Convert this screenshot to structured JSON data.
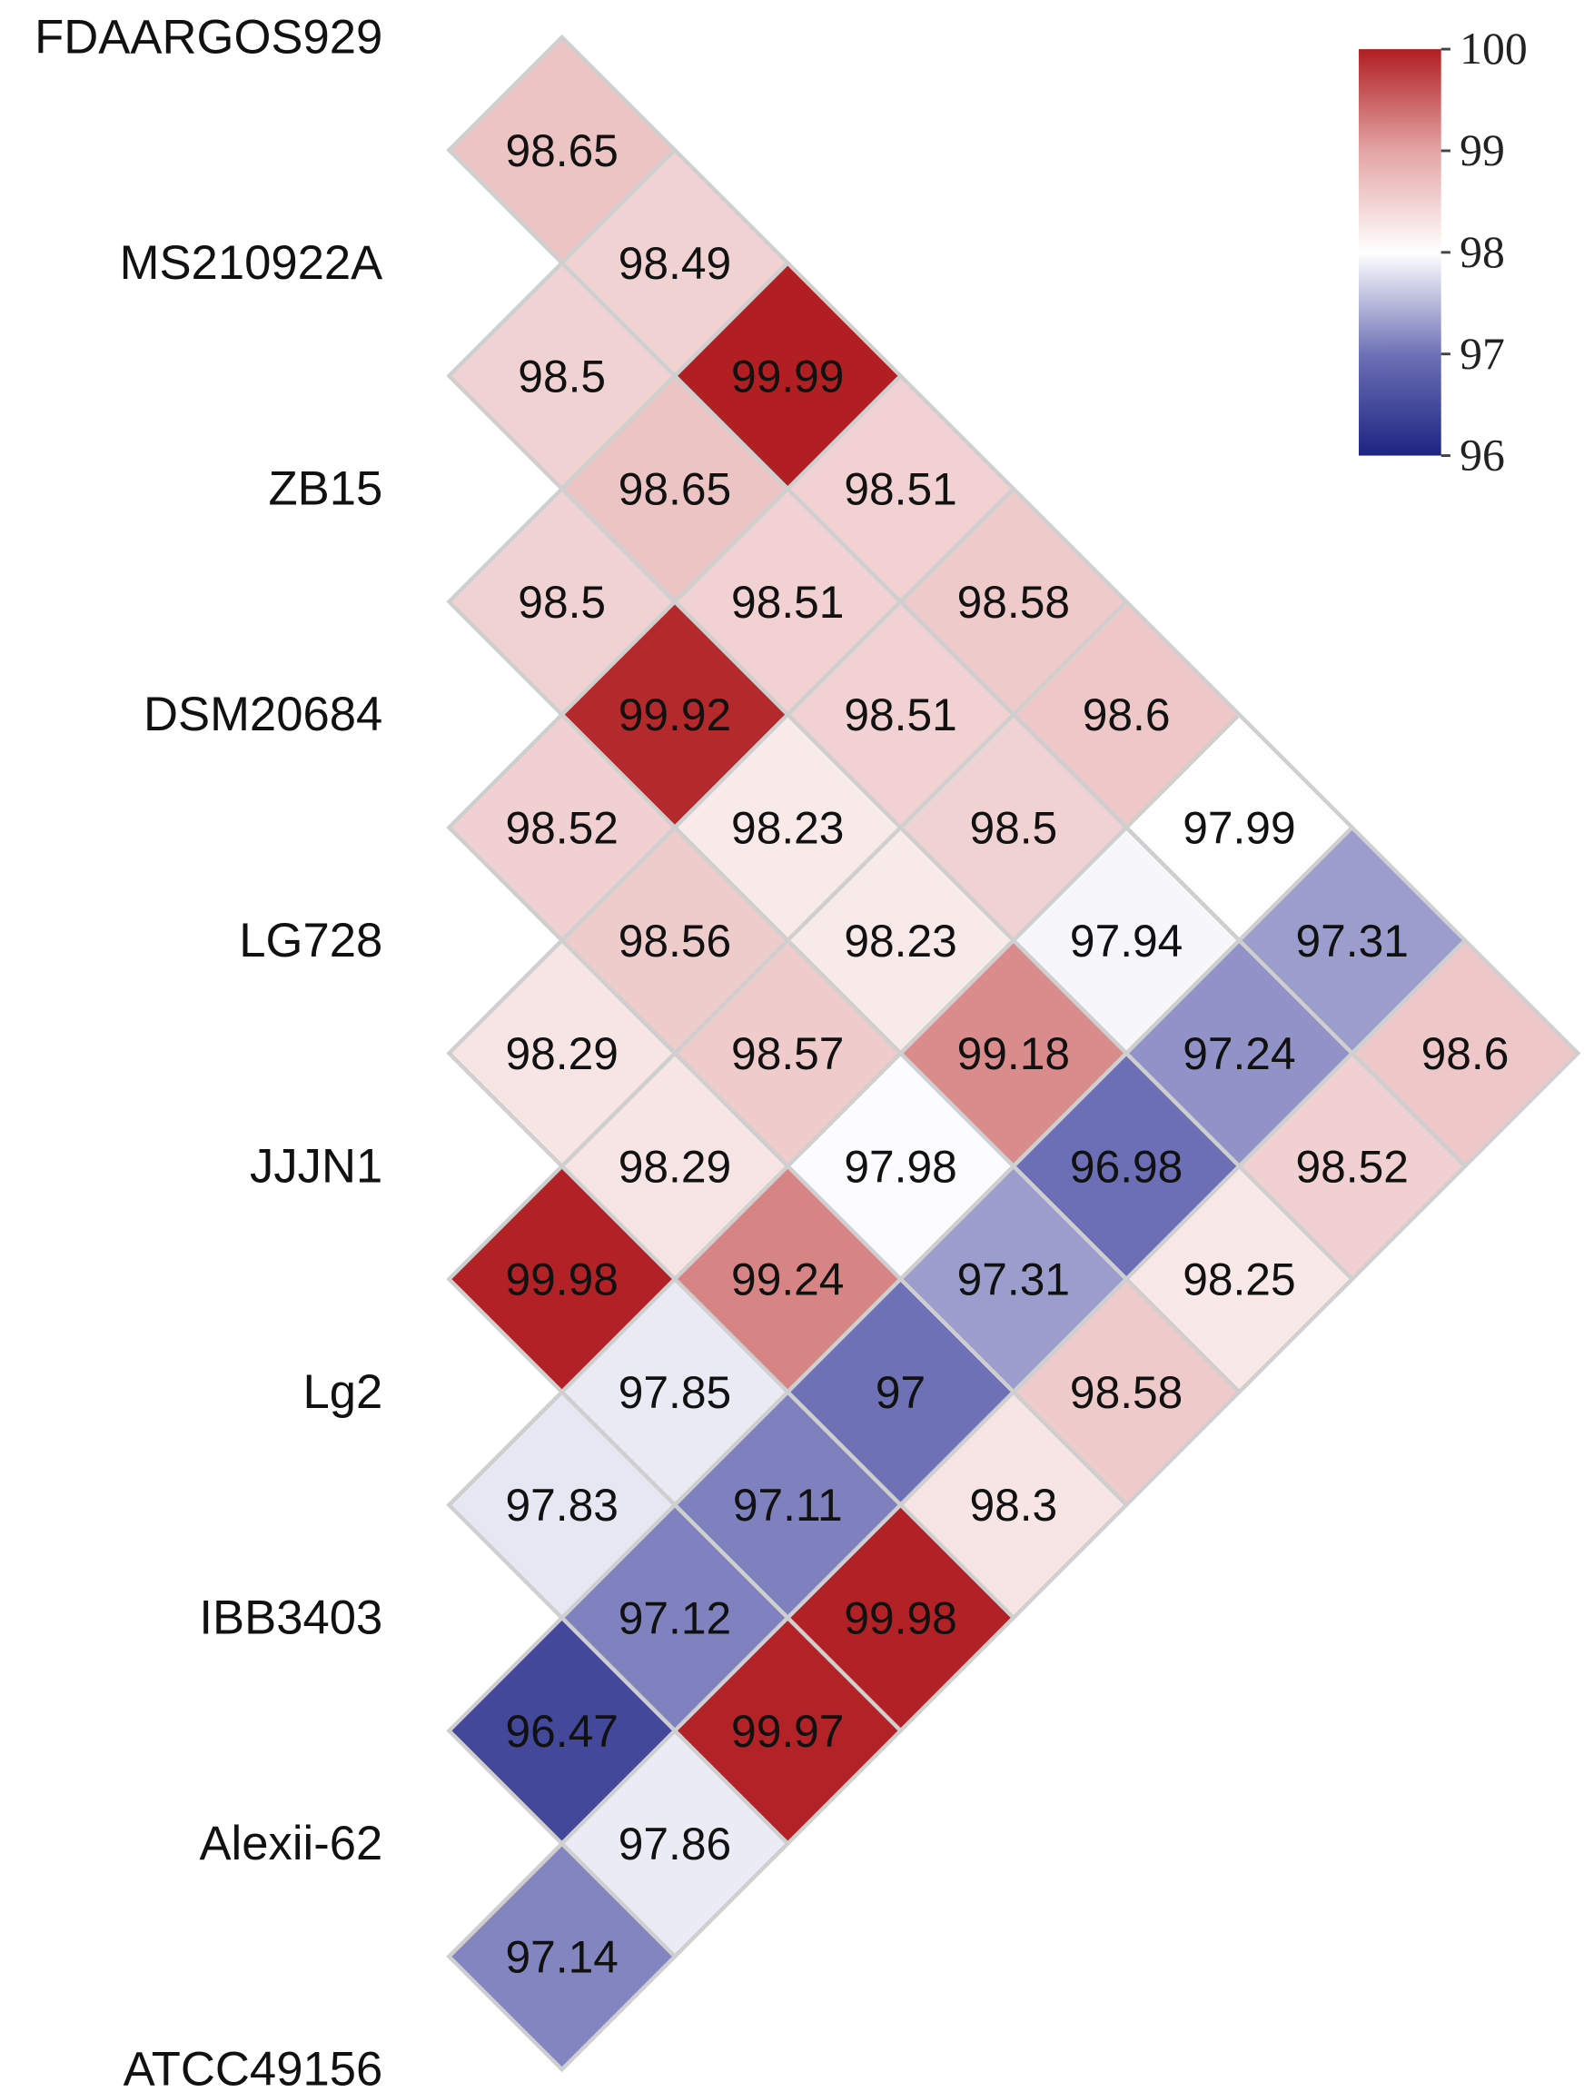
{
  "chart_data": {
    "type": "heatmap",
    "title": "",
    "layout": "lower-triangle rotated 45 degrees",
    "labels": [
      "FDAARGOS929",
      "MS210922A",
      "ZB15",
      "DSM20684",
      "LG728",
      "JJJN1",
      "Lg2",
      "IBB3403",
      "Alexii-62",
      "ATCC49156"
    ],
    "cells": [
      {
        "i": 0,
        "j": 1,
        "value": 98.65
      },
      {
        "i": 0,
        "j": 2,
        "value": 98.49
      },
      {
        "i": 1,
        "j": 2,
        "value": 98.5
      },
      {
        "i": 0,
        "j": 3,
        "value": 99.99
      },
      {
        "i": 1,
        "j": 3,
        "value": 98.65
      },
      {
        "i": 0,
        "j": 4,
        "value": 98.51
      },
      {
        "i": 2,
        "j": 3,
        "value": 98.5
      },
      {
        "i": 1,
        "j": 4,
        "value": 98.51
      },
      {
        "i": 0,
        "j": 5,
        "value": 98.58
      },
      {
        "i": 2,
        "j": 4,
        "value": 99.92
      },
      {
        "i": 1,
        "j": 5,
        "value": 98.51
      },
      {
        "i": 0,
        "j": 6,
        "value": 98.6
      },
      {
        "i": 3,
        "j": 4,
        "value": 98.52
      },
      {
        "i": 2,
        "j": 5,
        "value": 98.23
      },
      {
        "i": 1,
        "j": 6,
        "value": 98.5
      },
      {
        "i": 0,
        "j": 7,
        "value": 97.99
      },
      {
        "i": 3,
        "j": 5,
        "value": 98.56
      },
      {
        "i": 2,
        "j": 6,
        "value": 98.23
      },
      {
        "i": 1,
        "j": 7,
        "value": 97.94
      },
      {
        "i": 0,
        "j": 8,
        "value": 97.31
      },
      {
        "i": 4,
        "j": 5,
        "value": 98.29
      },
      {
        "i": 3,
        "j": 6,
        "value": 98.57
      },
      {
        "i": 2,
        "j": 7,
        "value": 99.18
      },
      {
        "i": 1,
        "j": 8,
        "value": 97.24
      },
      {
        "i": 0,
        "j": 9,
        "value": 98.6
      },
      {
        "i": 4,
        "j": 6,
        "value": 98.29
      },
      {
        "i": 3,
        "j": 7,
        "value": 97.98
      },
      {
        "i": 2,
        "j": 8,
        "value": 96.98
      },
      {
        "i": 1,
        "j": 9,
        "value": 98.52
      },
      {
        "i": 5,
        "j": 6,
        "value": 99.98
      },
      {
        "i": 4,
        "j": 7,
        "value": 99.24
      },
      {
        "i": 3,
        "j": 8,
        "value": 97.31
      },
      {
        "i": 2,
        "j": 9,
        "value": 98.25
      },
      {
        "i": 5,
        "j": 7,
        "value": 97.85
      },
      {
        "i": 4,
        "j": 8,
        "value": 97
      },
      {
        "i": 3,
        "j": 9,
        "value": 98.58
      },
      {
        "i": 6,
        "j": 7,
        "value": 97.83
      },
      {
        "i": 5,
        "j": 8,
        "value": 97.11
      },
      {
        "i": 4,
        "j": 9,
        "value": 98.3
      },
      {
        "i": 6,
        "j": 8,
        "value": 97.12
      },
      {
        "i": 5,
        "j": 9,
        "value": 99.98
      },
      {
        "i": 7,
        "j": 8,
        "value": 96.47
      },
      {
        "i": 6,
        "j": 9,
        "value": 99.97
      },
      {
        "i": 7,
        "j": 9,
        "value": 97.86
      },
      {
        "i": 8,
        "j": 9,
        "value": 97.14
      }
    ],
    "colorbar": {
      "range": [
        96,
        100
      ],
      "ticks": [
        "100",
        "99",
        "98",
        "97",
        "96"
      ],
      "stops": [
        {
          "value": 96,
          "color": "#1c2482"
        },
        {
          "value": 97,
          "color": "#6e71b6"
        },
        {
          "value": 98,
          "color": "#ffffff"
        },
        {
          "value": 99,
          "color": "#e3a4a4"
        },
        {
          "value": 100,
          "color": "#b01e22"
        }
      ]
    }
  }
}
